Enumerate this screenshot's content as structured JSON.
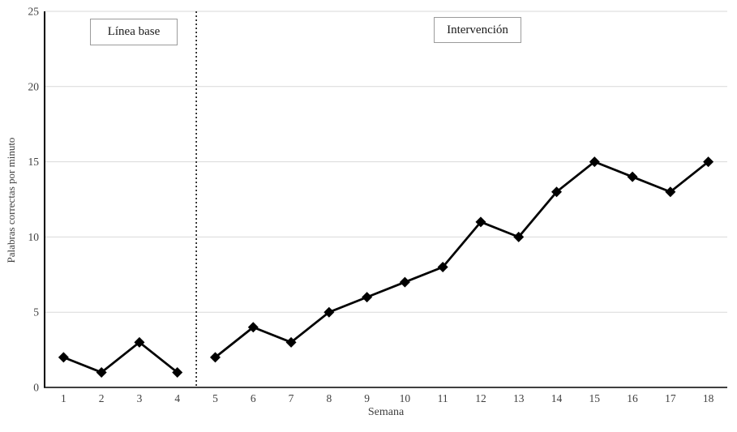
{
  "chart_data": {
    "type": "line",
    "title": "",
    "xlabel": "Semana",
    "ylabel": "Palabras correctas por minuto",
    "x": [
      1,
      2,
      3,
      4,
      5,
      6,
      7,
      8,
      9,
      10,
      11,
      12,
      13,
      14,
      15,
      16,
      17,
      18
    ],
    "series": [
      {
        "name": "Línea base",
        "x": [
          1,
          2,
          3,
          4
        ],
        "values": [
          2,
          1,
          3,
          1
        ]
      },
      {
        "name": "Intervención",
        "x": [
          5,
          6,
          7,
          8,
          9,
          10,
          11,
          12,
          13,
          14,
          15,
          16,
          17,
          18
        ],
        "values": [
          2,
          4,
          3,
          5,
          6,
          7,
          8,
          11,
          10,
          13,
          15,
          14,
          13,
          15
        ]
      }
    ],
    "ylim": [
      0,
      25
    ],
    "yticks": [
      0,
      5,
      10,
      15,
      20,
      25
    ],
    "phase_divider_x": 4.5,
    "annotations": [
      {
        "label": "Línea base"
      },
      {
        "label": "Intervención"
      }
    ],
    "grid": "horizontal",
    "legend": "none",
    "marker": "diamond",
    "colors": {
      "line": "#000000",
      "marker": "#000000",
      "gridline": "#d9d9d9",
      "axis": "#000000",
      "divider": "#000000",
      "tick_label": "#3f3f3f",
      "box_border": "#9b9b9b"
    }
  }
}
